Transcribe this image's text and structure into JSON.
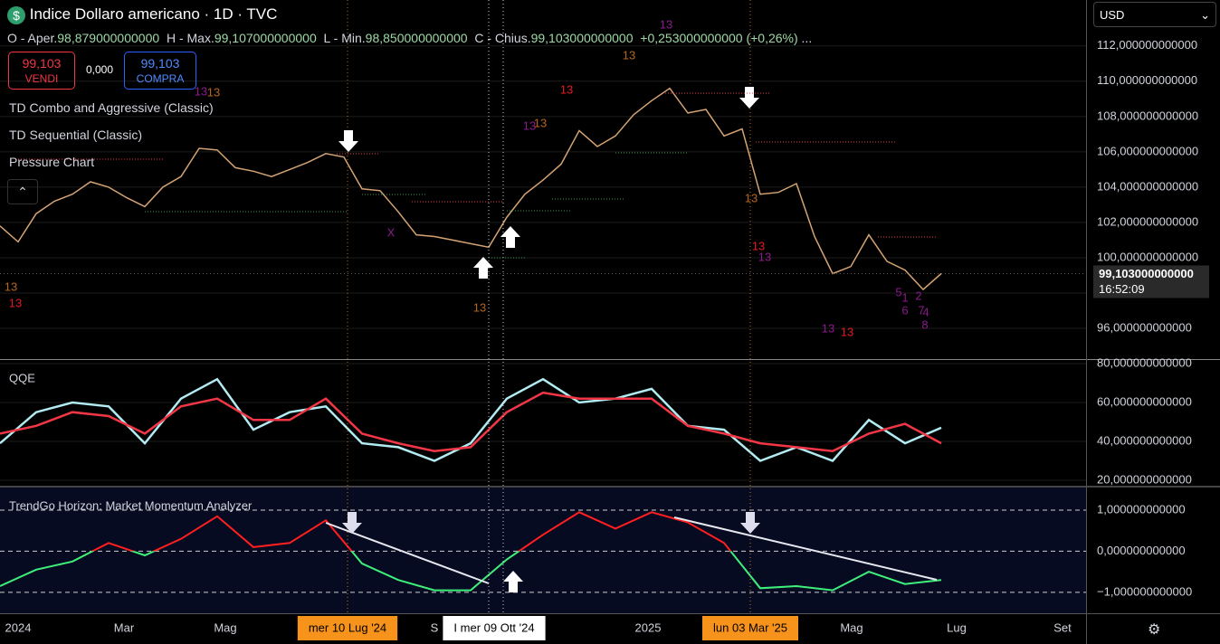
{
  "header": {
    "title": "Indice Dollaro americano · 1D · TVC",
    "open_label": "O - Aper.",
    "open": "98,879000000000",
    "high_label": "H - Max.",
    "high": "99,107000000000",
    "low_label": "L - Min.",
    "low": "98,850000000000",
    "close_label": "C - Chius.",
    "close": "99,103000000000",
    "change": "+0,253000000000 (+0,26%)",
    "more": "...",
    "sell_price": "99,103",
    "sell": "VENDI",
    "spread": "0,000",
    "buy_price": "99,103",
    "buy": "COMPRA",
    "indicators": [
      "TD Combo and Aggressive (Classic)",
      "TD Sequential (Classic)",
      "Pressure Chart"
    ],
    "currency": "USD",
    "last_price": 99.103,
    "countdown": "16:52:09"
  },
  "chart_data": [
    {
      "type": "line",
      "ylim": [
        94.26,
        114.6
      ],
      "yticks": [
        {
          "value": 96,
          "label": "96,000000000000"
        },
        {
          "value": 98,
          "label": "98,000000000000"
        },
        {
          "value": 100,
          "label": "100,000000000000"
        },
        {
          "value": 102,
          "label": "102,000000000000"
        },
        {
          "value": 104,
          "label": "104,000000000000"
        },
        {
          "value": 106,
          "label": "106,000000000000"
        },
        {
          "value": 108,
          "label": "108,000000000000"
        },
        {
          "value": 110,
          "label": "110,000000000000"
        },
        {
          "value": 112,
          "label": "112,000000000000"
        }
      ],
      "xlim": [
        0,
        60
      ],
      "x": [
        0,
        1,
        2,
        3,
        4,
        5,
        6,
        7,
        8,
        9,
        10,
        11,
        12,
        13,
        14,
        15,
        16,
        17,
        18,
        19,
        20,
        21,
        22,
        23,
        24,
        25,
        26,
        27,
        28,
        29,
        30,
        31,
        32,
        33,
        34,
        35,
        36,
        37,
        38,
        39,
        40,
        41,
        42,
        43,
        44,
        45,
        46,
        47,
        48,
        49,
        50,
        51,
        52
      ],
      "series": [
        {
          "color": "#d4a373",
          "values": [
            101.8,
            100.9,
            102.5,
            103.2,
            103.6,
            104.3,
            104.0,
            103.4,
            102.9,
            104.0,
            104.6,
            106.2,
            106.1,
            105.1,
            104.9,
            104.6,
            105.0,
            105.4,
            105.9,
            105.7,
            103.9,
            103.8,
            102.6,
            101.3,
            101.2,
            101.0,
            100.8,
            100.6,
            102.3,
            103.6,
            104.4,
            105.3,
            107.2,
            106.3,
            106.9,
            108.1,
            108.9,
            109.6,
            108.2,
            108.4,
            106.9,
            107.3,
            103.6,
            103.7,
            104.2,
            101.2,
            99.1,
            99.5,
            101.3,
            99.8,
            99.3,
            98.2,
            99.103
          ]
        }
      ],
      "annotations": [
        {
          "text": "13",
          "color": "#b5651d"
        },
        {
          "text": "13",
          "color": "#e01b24"
        },
        {
          "text": "13",
          "color": "#8b1a8b"
        },
        {
          "text": "13",
          "color": "#b5651d"
        },
        {
          "text": "13",
          "color": "#b5651d"
        },
        {
          "text": "13",
          "color": "#8b1a8b"
        },
        {
          "text": "13",
          "color": "#e01b24"
        },
        {
          "text": "13",
          "color": "#8b1a8b"
        },
        {
          "text": "13",
          "color": "#b5651d"
        },
        {
          "text": "X",
          "color": "#8b1a8b"
        },
        {
          "text": "13",
          "color": "#b5651d"
        },
        {
          "text": "13",
          "color": "#b5651d"
        },
        {
          "text": "13",
          "color": "#e01b24"
        },
        {
          "text": "13",
          "color": "#8b1a8b"
        },
        {
          "text": "13",
          "color": "#8b1a8b"
        },
        {
          "text": "13",
          "color": "#e01b24"
        },
        {
          "text": "5",
          "color": "#8b1a8b"
        },
        {
          "text": "1",
          "color": "#8b1a8b"
        },
        {
          "text": "6",
          "color": "#8b1a8b"
        },
        {
          "text": "2",
          "color": "#8b1a8b"
        },
        {
          "text": "7",
          "color": "#8b1a8b"
        },
        {
          "text": "4",
          "color": "#8b1a8b"
        },
        {
          "text": "8",
          "color": "#8b1a8b"
        }
      ]
    },
    {
      "type": "line",
      "title": "QQE",
      "ylim": [
        17.2,
        81.86
      ],
      "yticks": [
        {
          "value": 20,
          "label": "20,000000000000"
        },
        {
          "value": 40,
          "label": "40,000000000000"
        },
        {
          "value": 60,
          "label": "60,000000000000"
        },
        {
          "value": 80,
          "label": "80,000000000000"
        }
      ],
      "xlim": [
        0,
        60
      ],
      "x": [
        0,
        2,
        4,
        6,
        8,
        10,
        12,
        14,
        16,
        18,
        20,
        22,
        24,
        26,
        28,
        30,
        32,
        34,
        36,
        38,
        40,
        42,
        44,
        46,
        48,
        50,
        52
      ],
      "series": [
        {
          "color": "#b2ebf2",
          "values": [
            39,
            55,
            60,
            58,
            39,
            62,
            72,
            46,
            55,
            58,
            39,
            37,
            30,
            39,
            62,
            72,
            60,
            62,
            67,
            48,
            46,
            30,
            37,
            30,
            51,
            39,
            47
          ]
        },
        {
          "color": "#f23645",
          "values": [
            44,
            48,
            55,
            53,
            44,
            58,
            62,
            51,
            51,
            62,
            44,
            39,
            35,
            37,
            55,
            65,
            62,
            62,
            62,
            48,
            44,
            39,
            37,
            35,
            44,
            49,
            39
          ]
        }
      ]
    },
    {
      "type": "line",
      "title": "TrendGo Horizon: Market Momentum Analyzer",
      "ylim": [
        -1.51,
        1.55
      ],
      "yticks": [
        {
          "value": -1,
          "label": "−1,000000000000"
        },
        {
          "value": 0,
          "label": "0,000000000000"
        },
        {
          "value": 1,
          "label": "1,000000000000"
        }
      ],
      "xlim": [
        0,
        60
      ],
      "x": [
        0,
        2,
        4,
        6,
        8,
        10,
        12,
        14,
        16,
        18,
        20,
        22,
        24,
        26,
        28,
        30,
        32,
        34,
        36,
        38,
        40,
        42,
        44,
        46,
        48,
        50,
        52
      ],
      "series": [
        {
          "color": "#ff1f1f",
          "negative_color": "#3ef07a",
          "values": [
            -0.85,
            -0.45,
            -0.25,
            0.2,
            -0.1,
            0.3,
            0.85,
            0.1,
            0.2,
            0.75,
            -0.3,
            -0.7,
            -0.95,
            -0.95,
            -0.2,
            0.4,
            0.95,
            0.55,
            0.95,
            0.7,
            0.2,
            -0.9,
            -0.85,
            -0.95,
            -0.5,
            -0.8,
            -0.7
          ]
        }
      ],
      "xticks": [
        {
          "value": 1,
          "label": "2024"
        },
        {
          "value": 6.85,
          "label": "Mar"
        },
        {
          "value": 12.45,
          "label": "Mag"
        },
        {
          "value": 19.2,
          "label": "mer 10 Lug '24"
        },
        {
          "value": 24,
          "label": "S"
        },
        {
          "value": 27.3,
          "label": "I   mer 09 Ott '24"
        },
        {
          "value": 35.8,
          "label": "2025"
        },
        {
          "value": 41.45,
          "label": "lun 03 Mar '25"
        },
        {
          "value": 47.05,
          "label": "Mag"
        },
        {
          "value": 52.85,
          "label": "Lug"
        },
        {
          "value": 58.7,
          "label": "Set"
        }
      ]
    }
  ]
}
